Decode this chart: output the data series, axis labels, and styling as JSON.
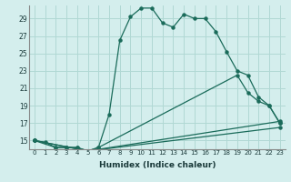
{
  "xlabel": "Humidex (Indice chaleur)",
  "ylabel": "",
  "xlim": [
    -0.5,
    23.5
  ],
  "ylim": [
    14.0,
    30.5
  ],
  "yticks": [
    15,
    17,
    19,
    21,
    23,
    25,
    27,
    29
  ],
  "xticks": [
    0,
    1,
    2,
    3,
    4,
    5,
    6,
    7,
    8,
    9,
    10,
    11,
    12,
    13,
    14,
    15,
    16,
    17,
    18,
    19,
    20,
    21,
    22,
    23
  ],
  "bg_color": "#d4eeed",
  "grid_color": "#b0d8d4",
  "line_color": "#1a6b5a",
  "lines": [
    {
      "x": [
        0,
        1,
        2,
        3,
        4,
        5,
        6,
        7,
        8,
        9,
        10,
        11,
        12,
        13,
        14,
        15,
        16,
        17,
        18,
        19,
        20,
        21,
        22,
        23
      ],
      "y": [
        15,
        14.8,
        14.2,
        14.2,
        14.2,
        13.8,
        14.2,
        18.0,
        26.5,
        29.2,
        30.2,
        30.2,
        28.5,
        28.0,
        29.5,
        29.0,
        29.0,
        27.5,
        25.2,
        23.0,
        22.5,
        20.0,
        19.0,
        17.0
      ]
    },
    {
      "x": [
        0,
        2,
        3,
        4,
        5,
        6,
        19,
        20,
        21,
        22,
        23
      ],
      "y": [
        15,
        14.2,
        14.2,
        14.2,
        13.8,
        14.2,
        22.5,
        20.5,
        19.5,
        19.0,
        17.0
      ]
    },
    {
      "x": [
        0,
        5,
        23
      ],
      "y": [
        15,
        13.8,
        17.2
      ]
    },
    {
      "x": [
        0,
        5,
        23
      ],
      "y": [
        15,
        13.8,
        16.5
      ]
    }
  ]
}
